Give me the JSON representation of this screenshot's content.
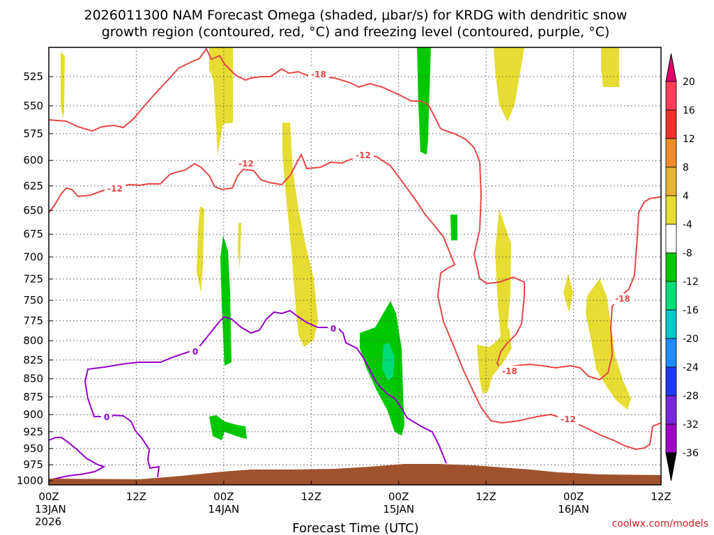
{
  "header": {
    "title_line1": "2026011300 NAM Forecast Omega (shaded, μbar/s) for KRDG with dendritic snow",
    "title_line2": "growth region (contoured, red, °C) and freezing level (contoured, purple, °C)"
  },
  "credit": "coolwx.com/models",
  "chart_data": {
    "type": "time-height cross section",
    "xlabel": "Forecast Time (UTC)",
    "x_ticks": [
      "00Z",
      "12Z",
      "00Z",
      "12Z",
      "00Z",
      "12Z",
      "00Z",
      "12Z"
    ],
    "x_dates": [
      "13JAN",
      "14JAN",
      "15JAN",
      "16JAN"
    ],
    "x_year": "2026",
    "y_ticks": [
      525,
      550,
      575,
      600,
      625,
      650,
      675,
      700,
      725,
      750,
      775,
      800,
      825,
      850,
      875,
      900,
      925,
      950,
      975,
      1000
    ],
    "y_unit": "hPa",
    "grid": true,
    "colorbar": {
      "levels": [
        20,
        16,
        12,
        8,
        4,
        -4,
        -8,
        -12,
        -16,
        -20,
        -24,
        -28,
        -32,
        -36
      ],
      "colors": [
        "#ff3c5a",
        "#f03228",
        "#f08c28",
        "#e6b432",
        "#e6dc32",
        "#ffffff",
        "#00c800",
        "#00dc78",
        "#00c8c8",
        "#1e8cff",
        "#1e3cff",
        "#7828dc",
        "#a000c8",
        "#a0a0a0"
      ],
      "top_triangle": "#e6006e",
      "bottom_triangle": "#000000"
    },
    "contour_labels": {
      "dgz_warm": "-12",
      "dgz_cold": "-18",
      "freezing": "0"
    },
    "colors": {
      "dgz": "#e64646",
      "freezing": "#9600c8",
      "terrain": "#a0522d",
      "positive_omega": "#e6dc32",
      "negative_omega": "#00c800",
      "strong_negative": "#00dc78"
    }
  }
}
